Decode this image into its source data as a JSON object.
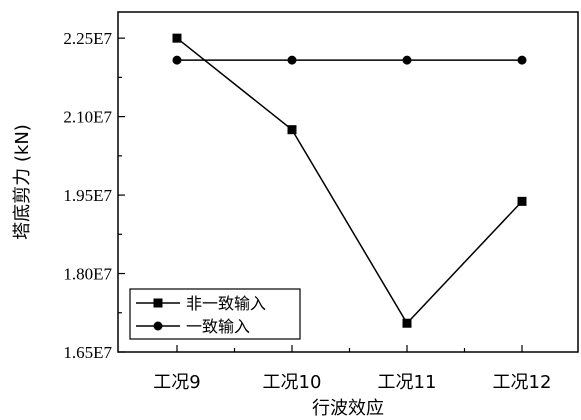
{
  "chart_data": {
    "type": "line",
    "categories": [
      "工况9",
      "工况10",
      "工况11",
      "工况12"
    ],
    "xlabel": "行波效应",
    "ylabel": "塔底剪力 (kN)",
    "ylim": [
      16500000,
      23000000
    ],
    "yticks": [
      16500000,
      18000000,
      19500000,
      21000000,
      22500000
    ],
    "ytick_labels": [
      "1.65E7",
      "1.80E7",
      "1.95E7",
      "2.10E7",
      "2.25E7"
    ],
    "grid": false,
    "legend_position": "bottom-left",
    "series": [
      {
        "name": "非一致输入",
        "marker": "square",
        "values": [
          22500000,
          20750000,
          17050000,
          19380000
        ]
      },
      {
        "name": "一致输入",
        "marker": "circle",
        "values": [
          22080000,
          22080000,
          22080000,
          22080000
        ]
      }
    ]
  },
  "colors": {
    "line": "#000000",
    "background": "#ffffff"
  }
}
